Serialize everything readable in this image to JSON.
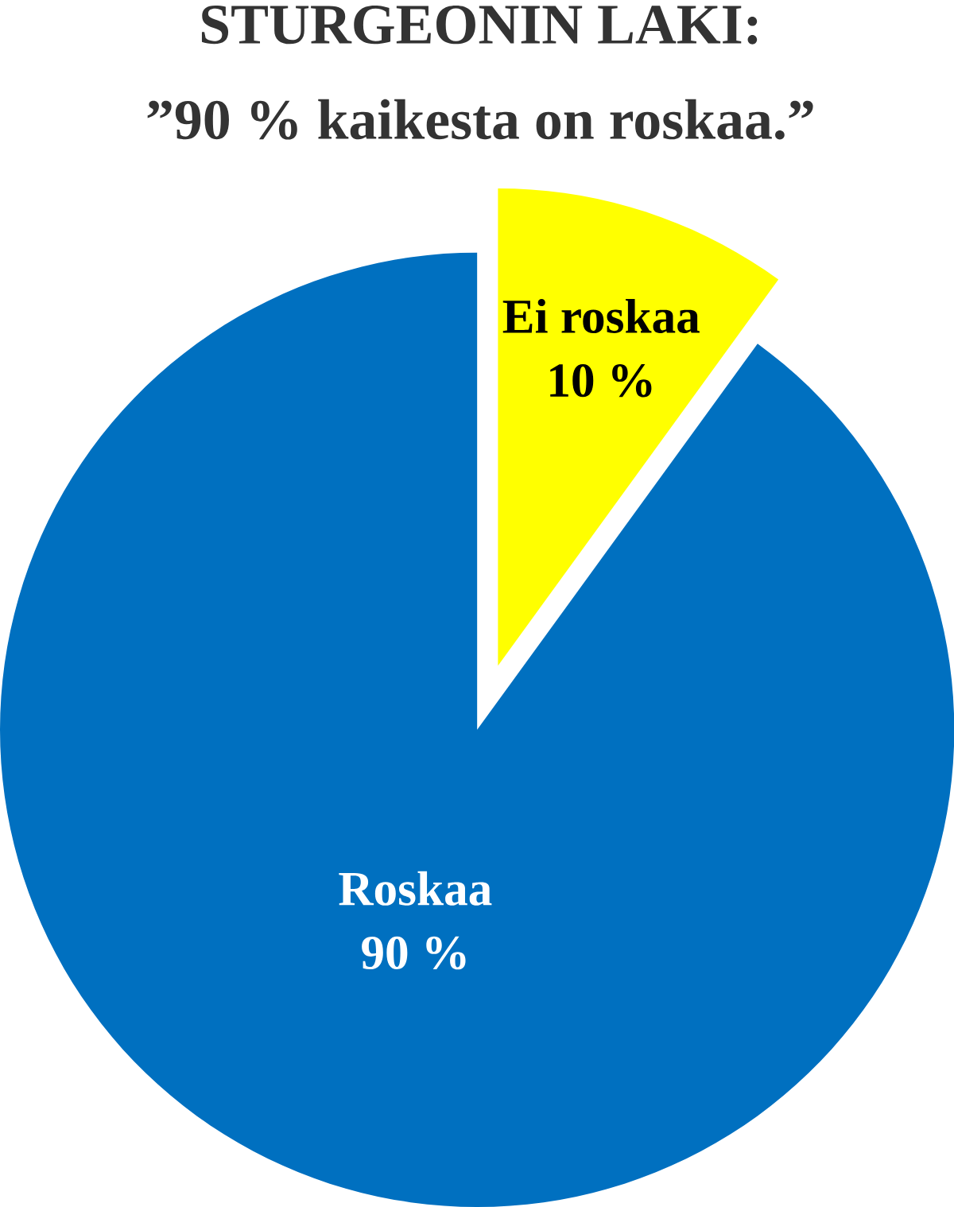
{
  "chart_data": {
    "type": "pie",
    "title": "STURGEONIN LAKI:",
    "subtitle": "”90 % kaikesta on roskaa.”",
    "categories": [
      "Ei roskaa",
      "Roskaa"
    ],
    "values": [
      10,
      90
    ],
    "value_labels": [
      "10 %",
      "90 %"
    ],
    "colors": [
      "#ffff00",
      "#0070c0"
    ]
  }
}
